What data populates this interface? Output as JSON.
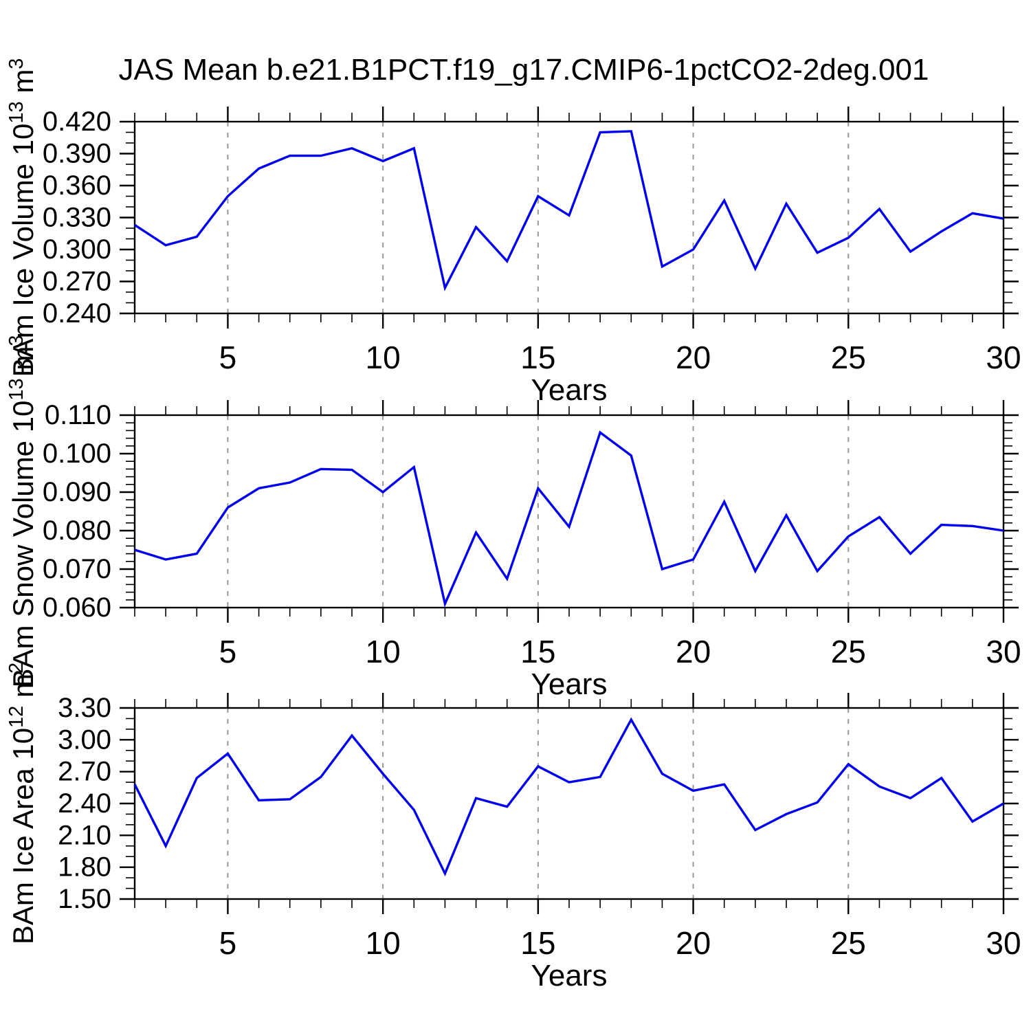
{
  "title": "JAS Mean b.e21.B1PCT.f19_g17.CMIP6-1pctCO2-2deg.001",
  "colors": {
    "line": "#0000EE",
    "axis": "#000000",
    "gridline": "#999999",
    "text": "#000000",
    "background": "#FFFFFF"
  },
  "x_axis": {
    "label": "Years",
    "min": 2,
    "max": 30,
    "minor_step": 1,
    "major_ticks": [
      5,
      10,
      15,
      20,
      25,
      30
    ],
    "grid_years": [
      5,
      10,
      15,
      20,
      25
    ]
  },
  "years": [
    2,
    3,
    4,
    5,
    6,
    7,
    8,
    9,
    10,
    11,
    12,
    13,
    14,
    15,
    16,
    17,
    18,
    19,
    20,
    21,
    22,
    23,
    24,
    25,
    26,
    27,
    28,
    29,
    30
  ],
  "chart_data": [
    {
      "type": "line",
      "name": "ice-volume",
      "ylabel": "BAm Ice Volume 10^13 m^3",
      "ylabel_parts": [
        {
          "t": "BAm Ice Volume 10"
        },
        {
          "t": "13",
          "sup": true
        },
        {
          "t": " m"
        },
        {
          "t": "3",
          "sup": true
        }
      ],
      "ylim": [
        0.24,
        0.42
      ],
      "y_major_step": 0.03,
      "y_minor_step": 0.01,
      "y_decimals": 3,
      "values": [
        0.323,
        0.304,
        0.312,
        0.35,
        0.376,
        0.388,
        0.388,
        0.395,
        0.383,
        0.395,
        0.264,
        0.321,
        0.289,
        0.35,
        0.332,
        0.41,
        0.411,
        0.284,
        0.3,
        0.346,
        0.282,
        0.343,
        0.297,
        0.311,
        0.338,
        0.298,
        0.317,
        0.334,
        0.329
      ]
    },
    {
      "type": "line",
      "name": "snow-volume",
      "ylabel": "BAm Snow Volume 10^13 m^3",
      "ylabel_parts": [
        {
          "t": "BAm Snow Volume 10"
        },
        {
          "t": "13",
          "sup": true
        },
        {
          "t": " m"
        },
        {
          "t": "3",
          "sup": true
        }
      ],
      "ylim": [
        0.06,
        0.11
      ],
      "y_major_step": 0.01,
      "y_minor_step": 0.002,
      "y_decimals": 3,
      "values": [
        0.075,
        0.0725,
        0.074,
        0.086,
        0.091,
        0.0925,
        0.096,
        0.0958,
        0.09,
        0.0965,
        0.061,
        0.0795,
        0.0675,
        0.091,
        0.081,
        0.1055,
        0.0995,
        0.07,
        0.0725,
        0.0875,
        0.0695,
        0.084,
        0.0695,
        0.0785,
        0.0835,
        0.074,
        0.0815,
        0.0812,
        0.08
      ]
    },
    {
      "type": "line",
      "name": "ice-area",
      "ylabel": "BAm Ice Area 10^12 m^2",
      "ylabel_parts": [
        {
          "t": "BAm Ice Area 10"
        },
        {
          "t": "12",
          "sup": true
        },
        {
          "t": " m"
        },
        {
          "t": "2",
          "sup": true
        }
      ],
      "ylim": [
        1.5,
        3.3
      ],
      "y_major_step": 0.3,
      "y_minor_step": 0.1,
      "y_decimals": 2,
      "values": [
        2.58,
        2.0,
        2.64,
        2.87,
        2.43,
        2.44,
        2.65,
        3.04,
        2.68,
        2.34,
        1.74,
        2.45,
        2.37,
        2.75,
        2.6,
        2.65,
        3.19,
        2.68,
        2.52,
        2.58,
        2.15,
        2.3,
        2.41,
        2.77,
        2.56,
        2.45,
        2.64,
        2.23,
        2.4
      ]
    }
  ]
}
